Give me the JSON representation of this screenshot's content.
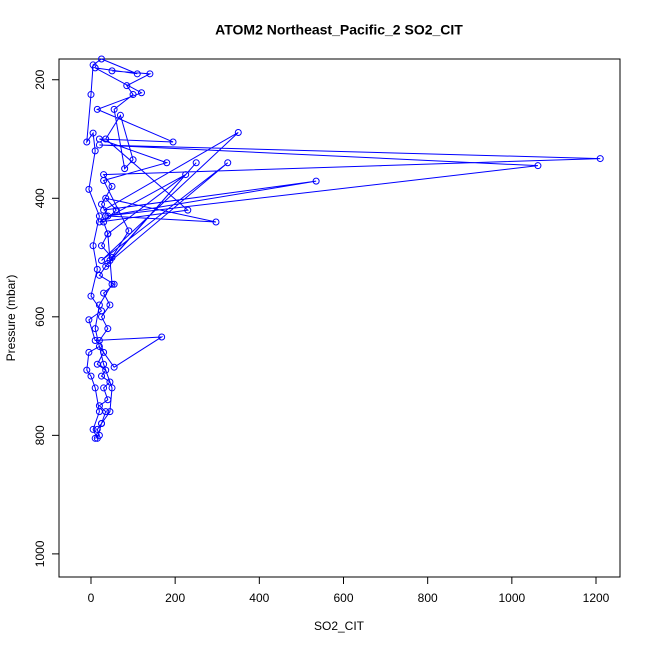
{
  "chart_data": {
    "type": "line",
    "markers": true,
    "title": "ATOM2 Northeast_Pacific_2 SO2_CIT",
    "x_label": "SO2_CIT",
    "y_label": "Pressure (mbar)",
    "color": "#0000ff",
    "x": [
      10,
      20,
      15,
      25,
      35,
      20,
      40,
      30,
      45,
      25,
      35,
      15,
      30,
      20,
      40,
      25,
      45,
      30,
      55,
      20,
      35,
      50,
      25,
      40,
      30,
      60,
      35,
      297,
      40,
      25,
      50,
      30,
      1210,
      20,
      1062,
      35,
      535,
      30,
      350,
      25,
      325,
      40,
      250,
      45,
      90,
      30,
      180,
      20,
      195,
      15,
      120,
      10,
      110,
      25,
      5,
      0,
      -10,
      5,
      10,
      -5,
      20,
      5,
      15,
      0,
      25,
      -5,
      10,
      168,
      55,
      20,
      -5,
      -10,
      0,
      10,
      20,
      5,
      15,
      25,
      45,
      50,
      30,
      10,
      20,
      50,
      40,
      225,
      20,
      230,
      35,
      70,
      100,
      80,
      55,
      100,
      85,
      140,
      50
    ],
    "values": [
      805,
      800,
      790,
      780,
      760,
      750,
      740,
      720,
      710,
      700,
      690,
      680,
      660,
      640,
      620,
      600,
      580,
      560,
      545,
      530,
      515,
      500,
      480,
      460,
      440,
      420,
      400,
      440,
      430,
      410,
      380,
      360,
      333,
      310,
      345,
      430,
      371,
      420,
      289,
      505,
      340,
      510,
      340,
      505,
      455,
      370,
      340,
      300,
      305,
      250,
      222,
      180,
      190,
      165,
      175,
      225,
      305,
      290,
      320,
      385,
      430,
      480,
      520,
      565,
      590,
      605,
      640,
      634,
      685,
      650,
      660,
      690,
      700,
      720,
      760,
      790,
      805,
      780,
      760,
      720,
      680,
      620,
      580,
      545,
      460,
      360,
      440,
      420,
      300,
      260,
      335,
      350,
      250,
      225,
      210,
      190,
      185
    ],
    "xlim": [
      -76,
      1257
    ],
    "ylim": [
      1039,
      165
    ],
    "xticks": [
      0,
      200,
      400,
      600,
      800,
      1000,
      1200
    ],
    "yticks": [
      200,
      400,
      600,
      800,
      1000
    ]
  }
}
